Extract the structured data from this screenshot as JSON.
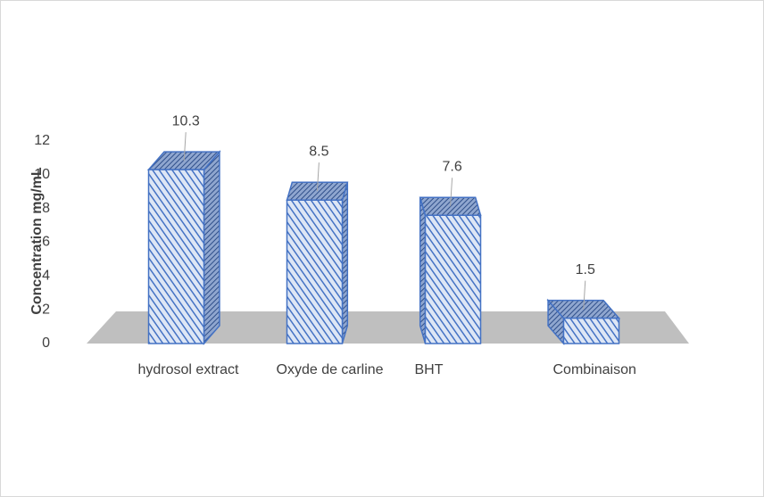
{
  "chart_data": {
    "type": "bar3d",
    "y_label": "Concentration mg/mL",
    "categories": [
      "hydrosol extract",
      "Oxyde de carline",
      "BHT",
      "Combinaison"
    ],
    "values": [
      10.3,
      8.5,
      7.6,
      1.5
    ],
    "color": "#4472c4",
    "ylim": [
      0,
      12
    ],
    "yticks": [
      0,
      2,
      4,
      6,
      8,
      10,
      12
    ]
  }
}
